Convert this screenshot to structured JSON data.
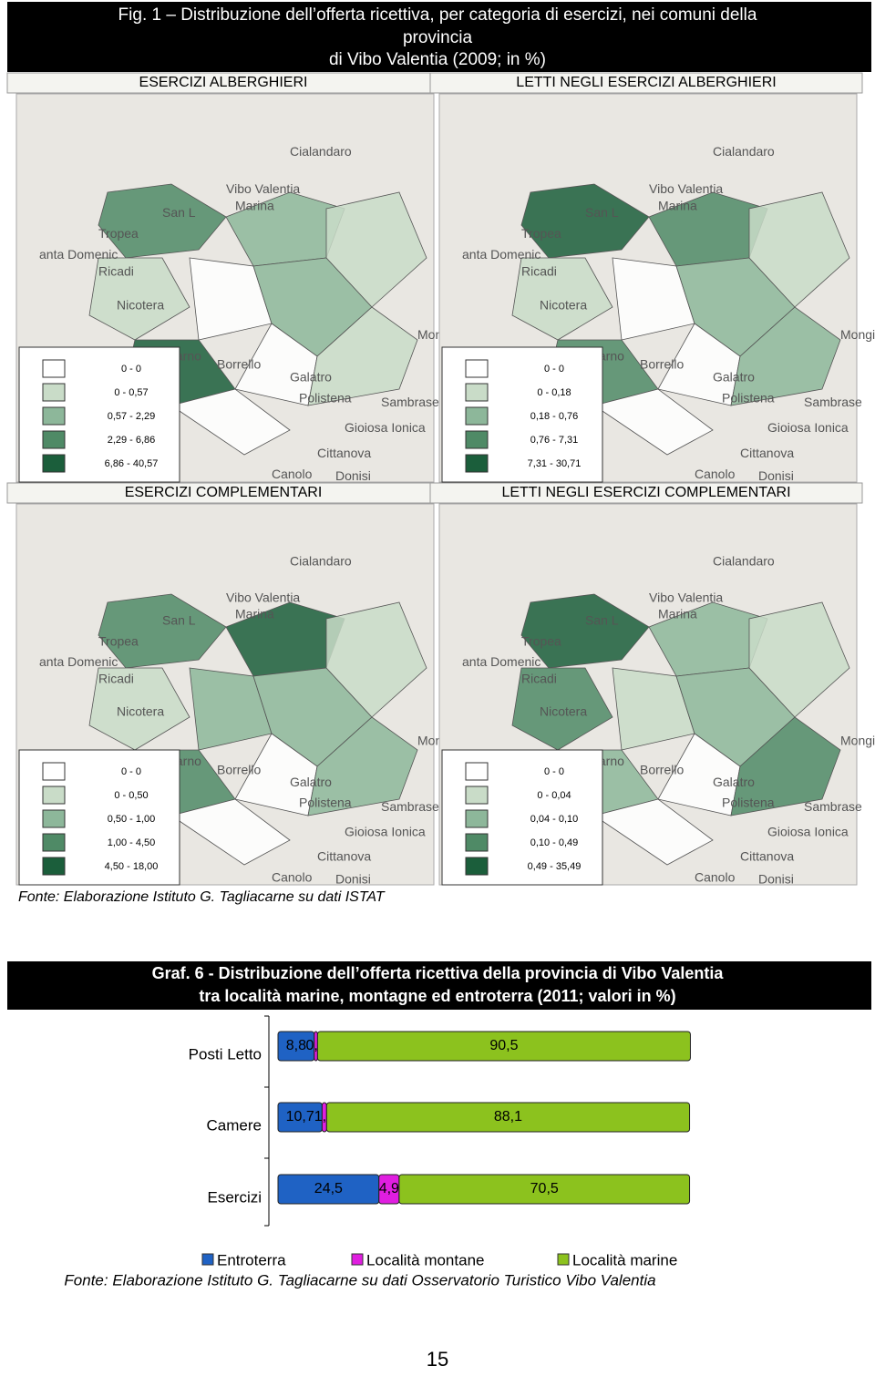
{
  "header": {
    "title_lines": [
      "Fig. 1 – Distribuzione dell’offerta ricettiva, per categoria di esercizi, nei comuni della",
      "provincia",
      "di Vibo Valentia (2009; in %)"
    ]
  },
  "maps": [
    {
      "label": "ESERCIZI ALBERGHIERI",
      "legend": [
        "0 - 0",
        "0 - 0,57",
        "0,57 - 2,29",
        "2,29 - 6,86",
        "6,86 - 40,57"
      ]
    },
    {
      "label": "LETTI NEGLI ESERCIZI ALBERGHIERI",
      "legend": [
        "0 - 0",
        "0 - 0,18",
        "0,18 - 0,76",
        "0,76 - 7,31",
        "7,31 - 30,71"
      ]
    },
    {
      "label": "ESERCIZI COMPLEMENTARI",
      "legend": [
        "0 - 0",
        "0 - 0,50",
        "0,50 - 1,00",
        "1,00 - 4,50",
        "4,50 - 18,00"
      ]
    },
    {
      "label": "LETTI NEGLI ESERCIZI COMPLEMENTARI",
      "legend": [
        "0 - 0",
        "0 - 0,04",
        "0,04 - 0,10",
        "0,10 - 0,49",
        "0,49 - 35,49"
      ]
    }
  ],
  "map_places": [
    "Cialandaro",
    "Vibo Valentia",
    "Marina",
    "San L",
    "Tropea",
    "anta Domenic",
    "Ricadi",
    "Nicotera",
    "Rosarno",
    "Borrello",
    "Mongiana",
    "Galatro",
    "Polistena",
    "Sambrase",
    "Gioiosa Ionica",
    "Cittanova",
    "Canolo",
    "Donisi"
  ],
  "source": "Fonte: Elaborazione Istituto G. Tagliacarne su dati ISTAT",
  "chart_data": {
    "type": "bar",
    "orientation": "horizontal",
    "stacked": true,
    "title_lines": [
      "Graf. 6 - Distribuzione dell’offerta ricettiva della provincia di Vibo Valentia",
      "tra località marine, montagne ed entroterra (2011; valori in %)"
    ],
    "categories": [
      "Posti Letto",
      "Camere",
      "Esercizi"
    ],
    "series": [
      {
        "name": "Entroterra",
        "color": "#1f62c4",
        "values": [
          8.8,
          10.7,
          24.5
        ],
        "value_labels": [
          "8,8",
          "10,7",
          "24,5"
        ]
      },
      {
        "name": "Località montane",
        "color": "#e01ee0",
        "values": [
          0.8,
          1.1,
          4.9
        ],
        "value_labels": [
          "0,8",
          "1,1",
          "4,9"
        ]
      },
      {
        "name": "Località marine",
        "color": "#8cc21e",
        "values": [
          90.5,
          88.1,
          70.5
        ],
        "value_labels": [
          "90,5",
          "88,1",
          "70,5"
        ]
      }
    ],
    "xlim": [
      0,
      100
    ],
    "source": "Fonte: Elaborazione Istituto G. Tagliacarne su dati Osservatorio Turistico Vibo Valentia"
  },
  "page_number": 15
}
